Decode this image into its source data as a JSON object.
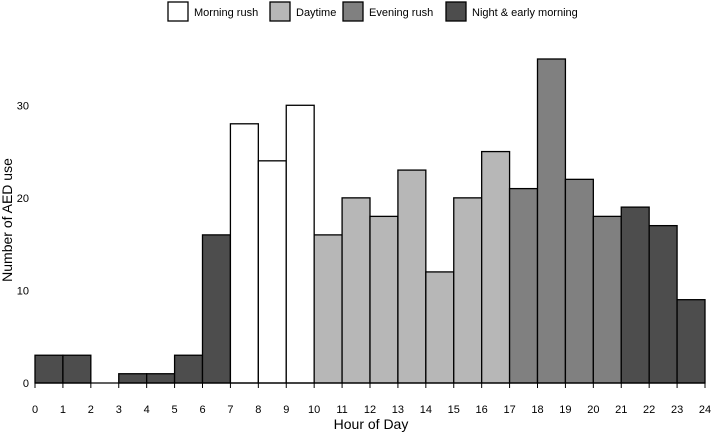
{
  "chart_data": {
    "type": "bar",
    "xlabel": "Hour of Day",
    "ylabel": "Number of AED use",
    "xlim": [
      0,
      24
    ],
    "ylim": [
      0,
      35
    ],
    "x_ticks": [
      "0",
      "1",
      "2",
      "3",
      "4",
      "5",
      "6",
      "7",
      "8",
      "9",
      "10",
      "11",
      "12",
      "13",
      "14",
      "15",
      "16",
      "17",
      "18",
      "19",
      "20",
      "21",
      "22",
      "23",
      "24"
    ],
    "y_ticks": [
      "0",
      "10",
      "20",
      "30"
    ],
    "legend": {
      "placement": "top-center",
      "items": [
        {
          "key": "morning",
          "label": "Morning rush",
          "color": "#ffffff"
        },
        {
          "key": "daytime",
          "label": "Daytime",
          "color": "#b7b7b7"
        },
        {
          "key": "evening",
          "label": "Evening rush",
          "color": "#808080"
        },
        {
          "key": "night",
          "label": "Night & early morning",
          "color": "#4d4d4d"
        }
      ]
    },
    "bars": [
      {
        "hour": 0,
        "value": 3,
        "group": "night"
      },
      {
        "hour": 1,
        "value": 3,
        "group": "night"
      },
      {
        "hour": 2,
        "value": 0,
        "group": "night"
      },
      {
        "hour": 3,
        "value": 1,
        "group": "night"
      },
      {
        "hour": 4,
        "value": 1,
        "group": "night"
      },
      {
        "hour": 5,
        "value": 3,
        "group": "night"
      },
      {
        "hour": 6,
        "value": 16,
        "group": "night"
      },
      {
        "hour": 7,
        "value": 28,
        "group": "morning"
      },
      {
        "hour": 8,
        "value": 24,
        "group": "morning"
      },
      {
        "hour": 9,
        "value": 30,
        "group": "morning"
      },
      {
        "hour": 10,
        "value": 16,
        "group": "daytime"
      },
      {
        "hour": 11,
        "value": 20,
        "group": "daytime"
      },
      {
        "hour": 12,
        "value": 18,
        "group": "daytime"
      },
      {
        "hour": 13,
        "value": 23,
        "group": "daytime"
      },
      {
        "hour": 14,
        "value": 12,
        "group": "daytime"
      },
      {
        "hour": 15,
        "value": 20,
        "group": "daytime"
      },
      {
        "hour": 16,
        "value": 25,
        "group": "daytime"
      },
      {
        "hour": 17,
        "value": 21,
        "group": "evening"
      },
      {
        "hour": 18,
        "value": 35,
        "group": "evening"
      },
      {
        "hour": 19,
        "value": 22,
        "group": "evening"
      },
      {
        "hour": 20,
        "value": 18,
        "group": "evening"
      },
      {
        "hour": 21,
        "value": 19,
        "group": "night"
      },
      {
        "hour": 22,
        "value": 17,
        "group": "night"
      },
      {
        "hour": 23,
        "value": 9,
        "group": "night"
      }
    ]
  }
}
